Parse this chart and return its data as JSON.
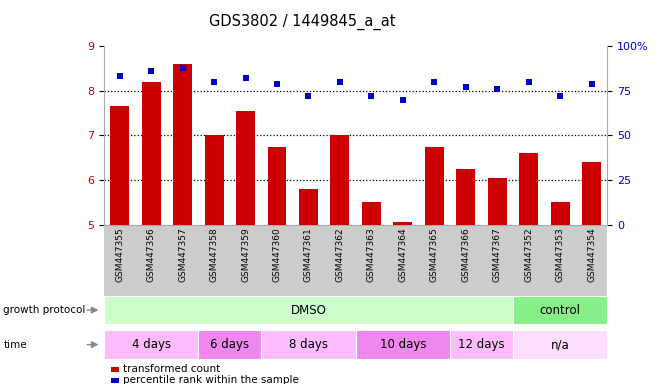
{
  "title": "GDS3802 / 1449845_a_at",
  "samples": [
    "GSM447355",
    "GSM447356",
    "GSM447357",
    "GSM447358",
    "GSM447359",
    "GSM447360",
    "GSM447361",
    "GSM447362",
    "GSM447363",
    "GSM447364",
    "GSM447365",
    "GSM447366",
    "GSM447367",
    "GSM447352",
    "GSM447353",
    "GSM447354"
  ],
  "bar_values": [
    7.65,
    8.2,
    8.6,
    7.0,
    7.55,
    6.75,
    5.8,
    7.0,
    5.5,
    5.05,
    6.75,
    6.25,
    6.05,
    6.6,
    5.5,
    6.4
  ],
  "dot_values": [
    83,
    86,
    88,
    80,
    82,
    79,
    72,
    80,
    72,
    70,
    80,
    77,
    76,
    80,
    72,
    79
  ],
  "bar_color": "#cc0000",
  "dot_color": "#0000cc",
  "ylim_left": [
    5,
    9
  ],
  "ylim_right": [
    0,
    100
  ],
  "yticks_left": [
    5,
    6,
    7,
    8,
    9
  ],
  "yticks_right": [
    0,
    25,
    50,
    75,
    100
  ],
  "ytick_labels_right": [
    "0",
    "25",
    "50",
    "75",
    "100%"
  ],
  "grid_values": [
    6,
    7,
    8
  ],
  "growth_protocol_label": "growth protocol",
  "time_label": "time",
  "protocol_groups": [
    {
      "label": "DMSO",
      "start": 0,
      "end": 13,
      "color": "#ccffcc"
    },
    {
      "label": "control",
      "start": 13,
      "end": 16,
      "color": "#88ee88"
    }
  ],
  "time_groups": [
    {
      "label": "4 days",
      "start": 0,
      "end": 3,
      "color": "#ffbbff"
    },
    {
      "label": "6 days",
      "start": 3,
      "end": 5,
      "color": "#ee88ee"
    },
    {
      "label": "8 days",
      "start": 5,
      "end": 8,
      "color": "#ffbbff"
    },
    {
      "label": "10 days",
      "start": 8,
      "end": 11,
      "color": "#ee88ee"
    },
    {
      "label": "12 days",
      "start": 11,
      "end": 13,
      "color": "#ffbbff"
    },
    {
      "label": "n/a",
      "start": 13,
      "end": 16,
      "color": "#ffddff"
    }
  ],
  "legend_items": [
    {
      "label": "transformed count",
      "color": "#cc0000"
    },
    {
      "label": "percentile rank within the sample",
      "color": "#0000cc"
    }
  ],
  "background_color": "#ffffff",
  "xticklabel_area_color": "#cccccc"
}
